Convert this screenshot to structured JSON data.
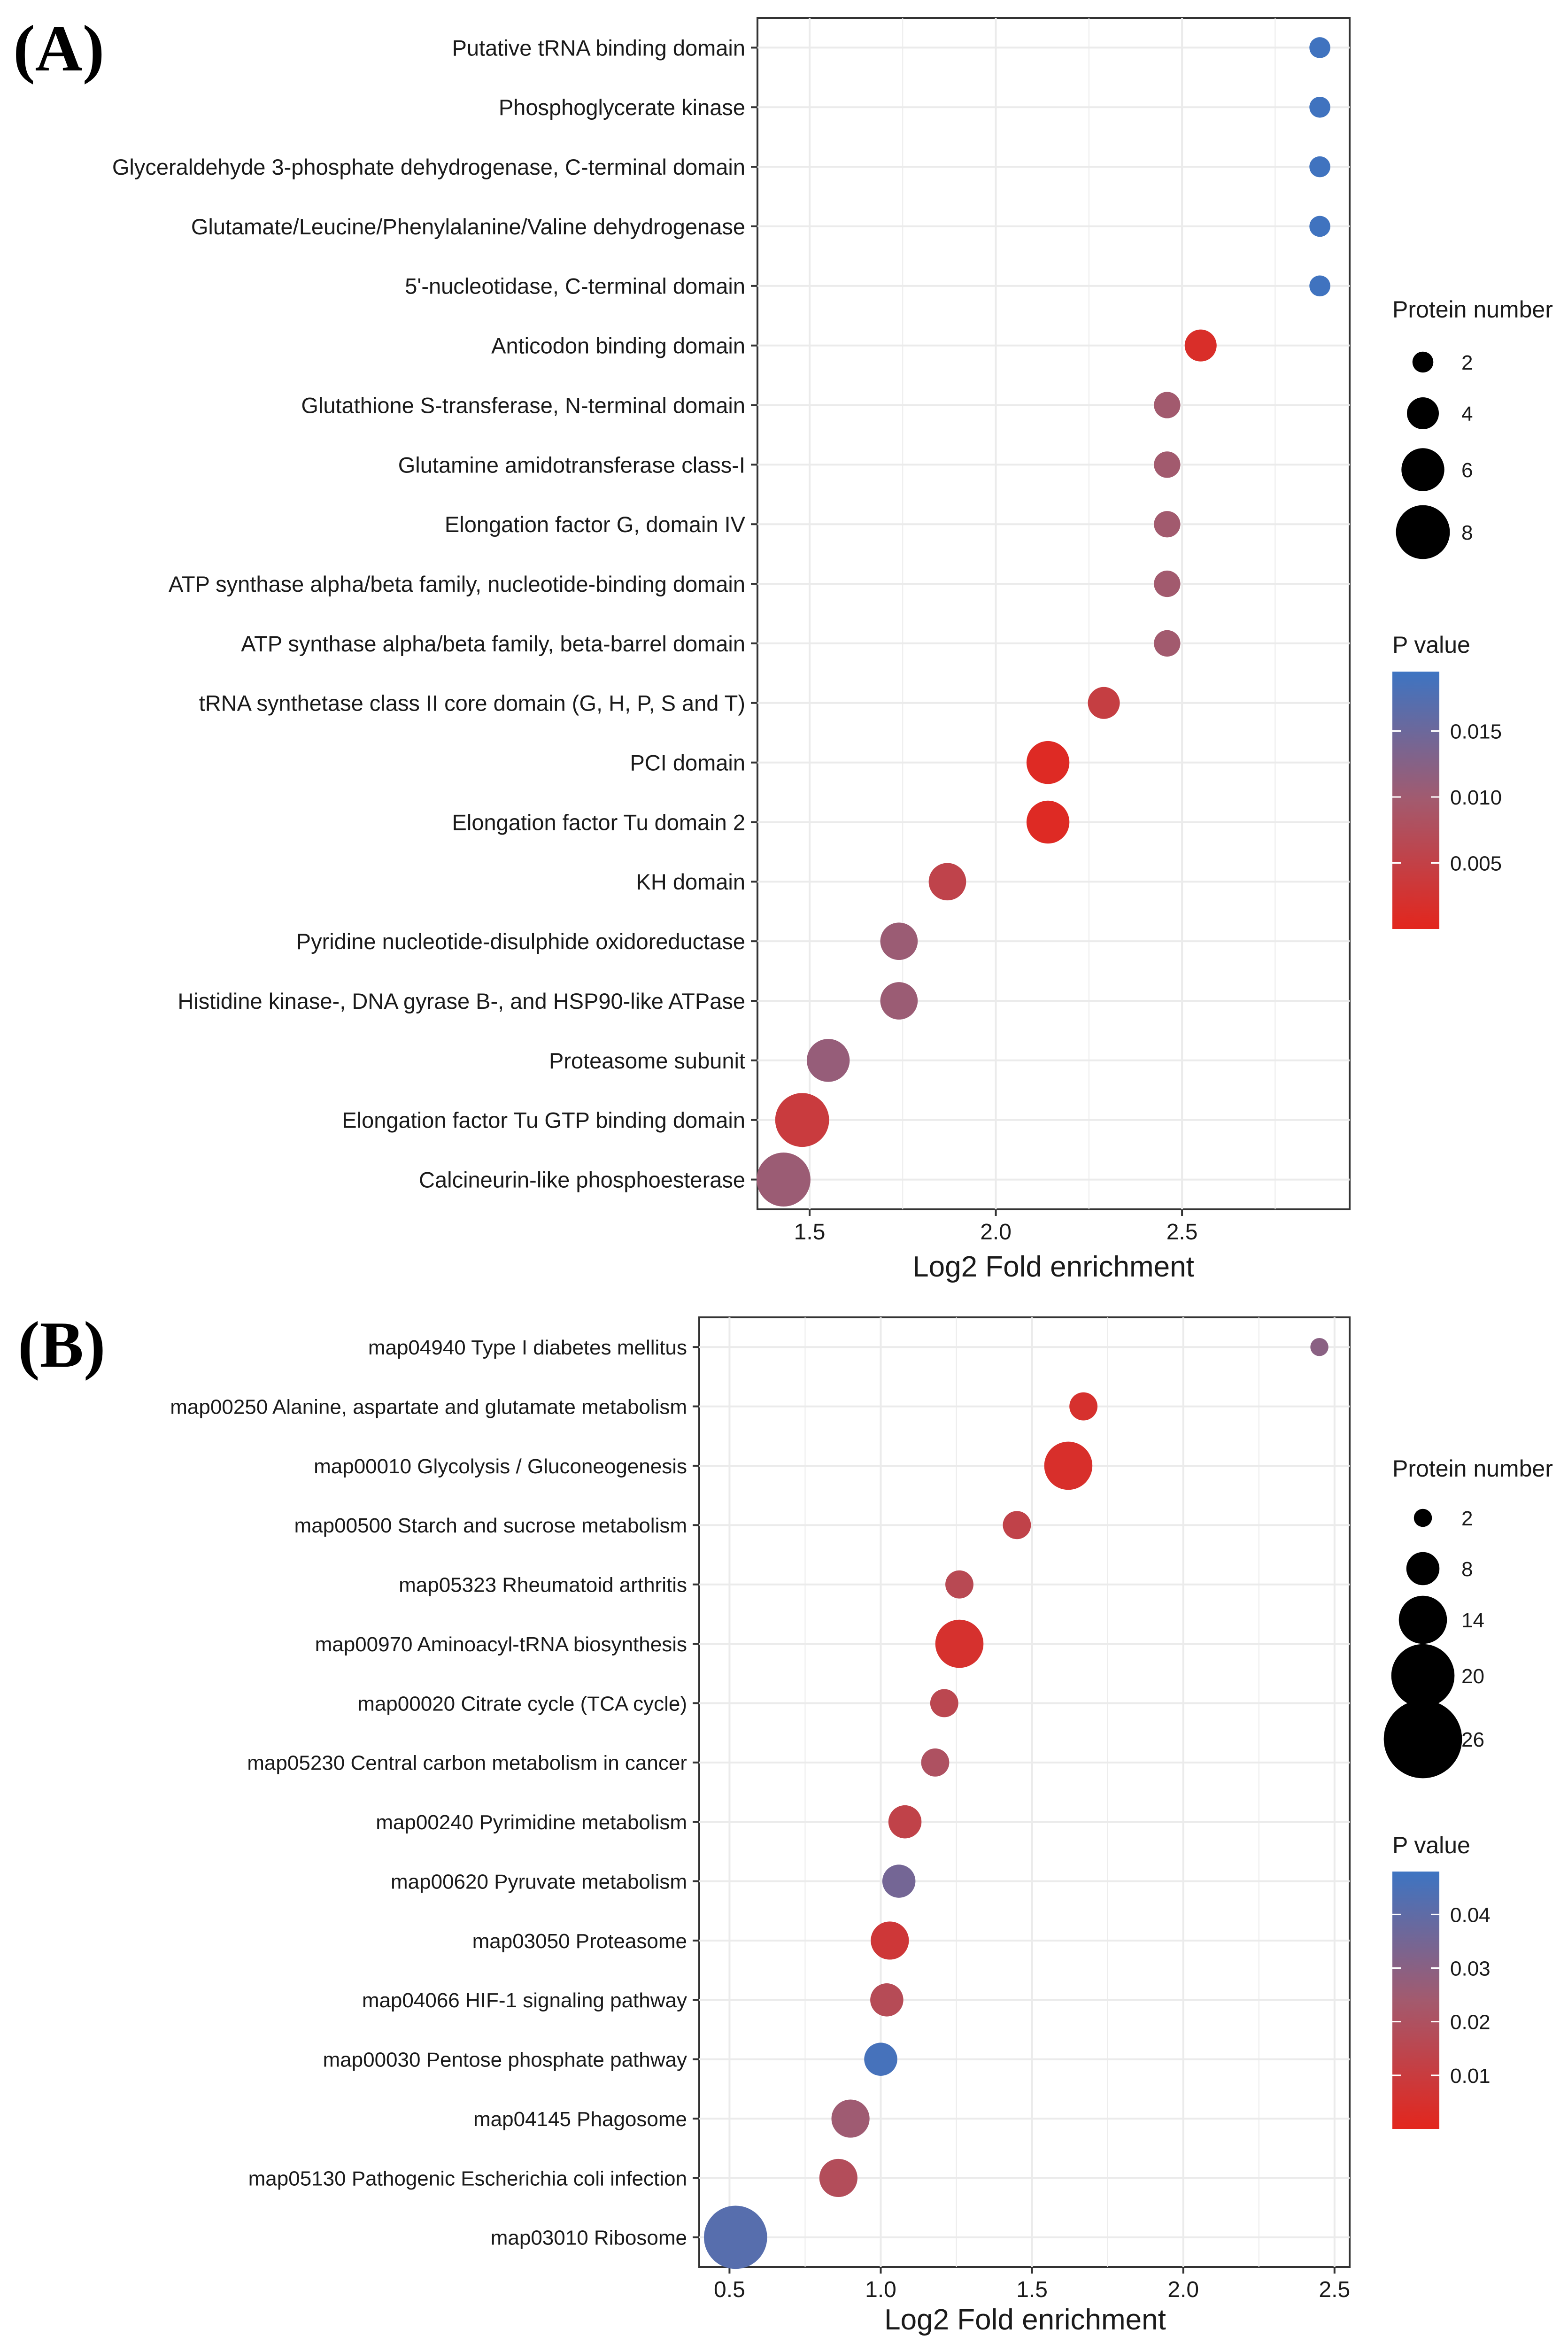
{
  "chart_data": [
    {
      "type": "scatter",
      "panel_label": "(A)",
      "xlabel": "Log2 Fold enrichment",
      "xlim": [
        1.36,
        2.95
      ],
      "xticks": [
        1.5,
        2.0,
        2.5
      ],
      "xtick_labels": [
        "1.5",
        "2.0",
        "2.5"
      ],
      "grid": true,
      "categories": [
        "Putative tRNA binding domain",
        "Phosphoglycerate kinase",
        "Glyceraldehyde 3-phosphate dehydrogenase, C-terminal domain",
        "Glutamate/Leucine/Phenylalanine/Valine dehydrogenase",
        "5'-nucleotidase, C-terminal domain",
        "Anticodon binding domain",
        "Glutathione S-transferase, N-terminal domain",
        "Glutamine amidotransferase class-I",
        "Elongation factor G, domain IV",
        "ATP synthase alpha/beta family, nucleotide-binding domain",
        "ATP synthase alpha/beta family, beta-barrel domain",
        "tRNA synthetase class II core domain (G, H, P, S and T)",
        "PCI domain",
        "Elongation factor Tu domain 2",
        "KH domain",
        "Pyridine nucleotide-disulphide oxidoreductase",
        "Histidine kinase-, DNA gyrase B-, and HSP90-like ATPase",
        "Proteasome subunit",
        "Elongation factor Tu GTP binding domain",
        "Calcineurin-like phosphoesterase"
      ],
      "x": [
        2.87,
        2.87,
        2.87,
        2.87,
        2.87,
        2.55,
        2.46,
        2.46,
        2.46,
        2.46,
        2.46,
        2.29,
        2.14,
        2.14,
        1.87,
        1.74,
        1.74,
        1.55,
        1.48,
        1.43
      ],
      "protein_number": [
        2,
        2,
        2,
        2,
        2,
        4,
        3,
        3,
        3,
        3,
        3,
        4,
        6,
        6,
        5,
        5,
        5,
        6,
        8,
        8
      ],
      "p_value": [
        0.0192,
        0.0192,
        0.0192,
        0.0192,
        0.0192,
        0.0015,
        0.0098,
        0.0098,
        0.0098,
        0.0098,
        0.0098,
        0.0045,
        0.0008,
        0.0008,
        0.0055,
        0.0105,
        0.0105,
        0.011,
        0.004,
        0.0105
      ],
      "size_legend": {
        "title": "Protein number",
        "values": [
          2,
          4,
          6,
          8
        ],
        "labels": [
          "2",
          "4",
          "6",
          "8"
        ]
      },
      "color_legend": {
        "title": "P value",
        "range": [
          0,
          0.0195
        ],
        "ticks": [
          0.005,
          0.01,
          0.015
        ],
        "tick_labels": [
          "0.005",
          "0.010",
          "0.015"
        ],
        "low_color": "#e3261d",
        "high_color": "#3d74c2"
      }
    },
    {
      "type": "scatter",
      "panel_label": "(B)",
      "xlabel": "Log2 Fold enrichment",
      "xlim": [
        0.4,
        2.55
      ],
      "xticks": [
        0.5,
        1.0,
        1.5,
        2.0,
        2.5
      ],
      "xtick_labels": [
        "0.5",
        "1.0",
        "1.5",
        "2.0",
        "2.5"
      ],
      "grid": true,
      "categories": [
        "map04940 Type I diabetes mellitus",
        "map00250 Alanine, aspartate and glutamate metabolism",
        "map00010 Glycolysis / Gluconeogenesis",
        "map00500 Starch and sucrose metabolism",
        "map05323 Rheumatoid arthritis",
        "map00970 Aminoacyl-tRNA biosynthesis",
        "map00020 Citrate cycle (TCA cycle)",
        "map05230 Central carbon metabolism in cancer",
        "map00240 Pyrimidine metabolism",
        "map00620 Pyruvate metabolism",
        "map03050 Proteasome",
        "map04066 HIF-1 signaling pathway",
        "map00030 Pentose phosphate pathway",
        "map04145 Phagosome",
        "map05130 Pathogenic Escherichia coli infection",
        "map03010 Ribosome"
      ],
      "x": [
        2.45,
        1.67,
        1.62,
        1.45,
        1.26,
        1.26,
        1.21,
        1.18,
        1.08,
        1.06,
        1.03,
        1.02,
        1.0,
        0.9,
        0.86,
        0.52
      ],
      "protein_number": [
        2,
        6,
        14,
        6,
        6,
        14,
        6,
        6,
        8,
        8,
        10,
        8,
        8,
        10,
        10,
        20
      ],
      "p_value": [
        0.03,
        0.005,
        0.004,
        0.013,
        0.016,
        0.005,
        0.015,
        0.02,
        0.013,
        0.035,
        0.008,
        0.017,
        0.046,
        0.025,
        0.018,
        0.042
      ],
      "size_legend": {
        "title": "Protein number",
        "values": [
          2,
          8,
          14,
          20,
          26
        ],
        "labels": [
          "2",
          "8",
          "14",
          "20",
          "26"
        ]
      },
      "color_legend": {
        "title": "P value",
        "range": [
          0,
          0.048
        ],
        "ticks": [
          0.01,
          0.02,
          0.03,
          0.04
        ],
        "tick_labels": [
          "0.01",
          "0.02",
          "0.03",
          "0.04"
        ],
        "low_color": "#e3261d",
        "high_color": "#3d74c2"
      }
    }
  ]
}
